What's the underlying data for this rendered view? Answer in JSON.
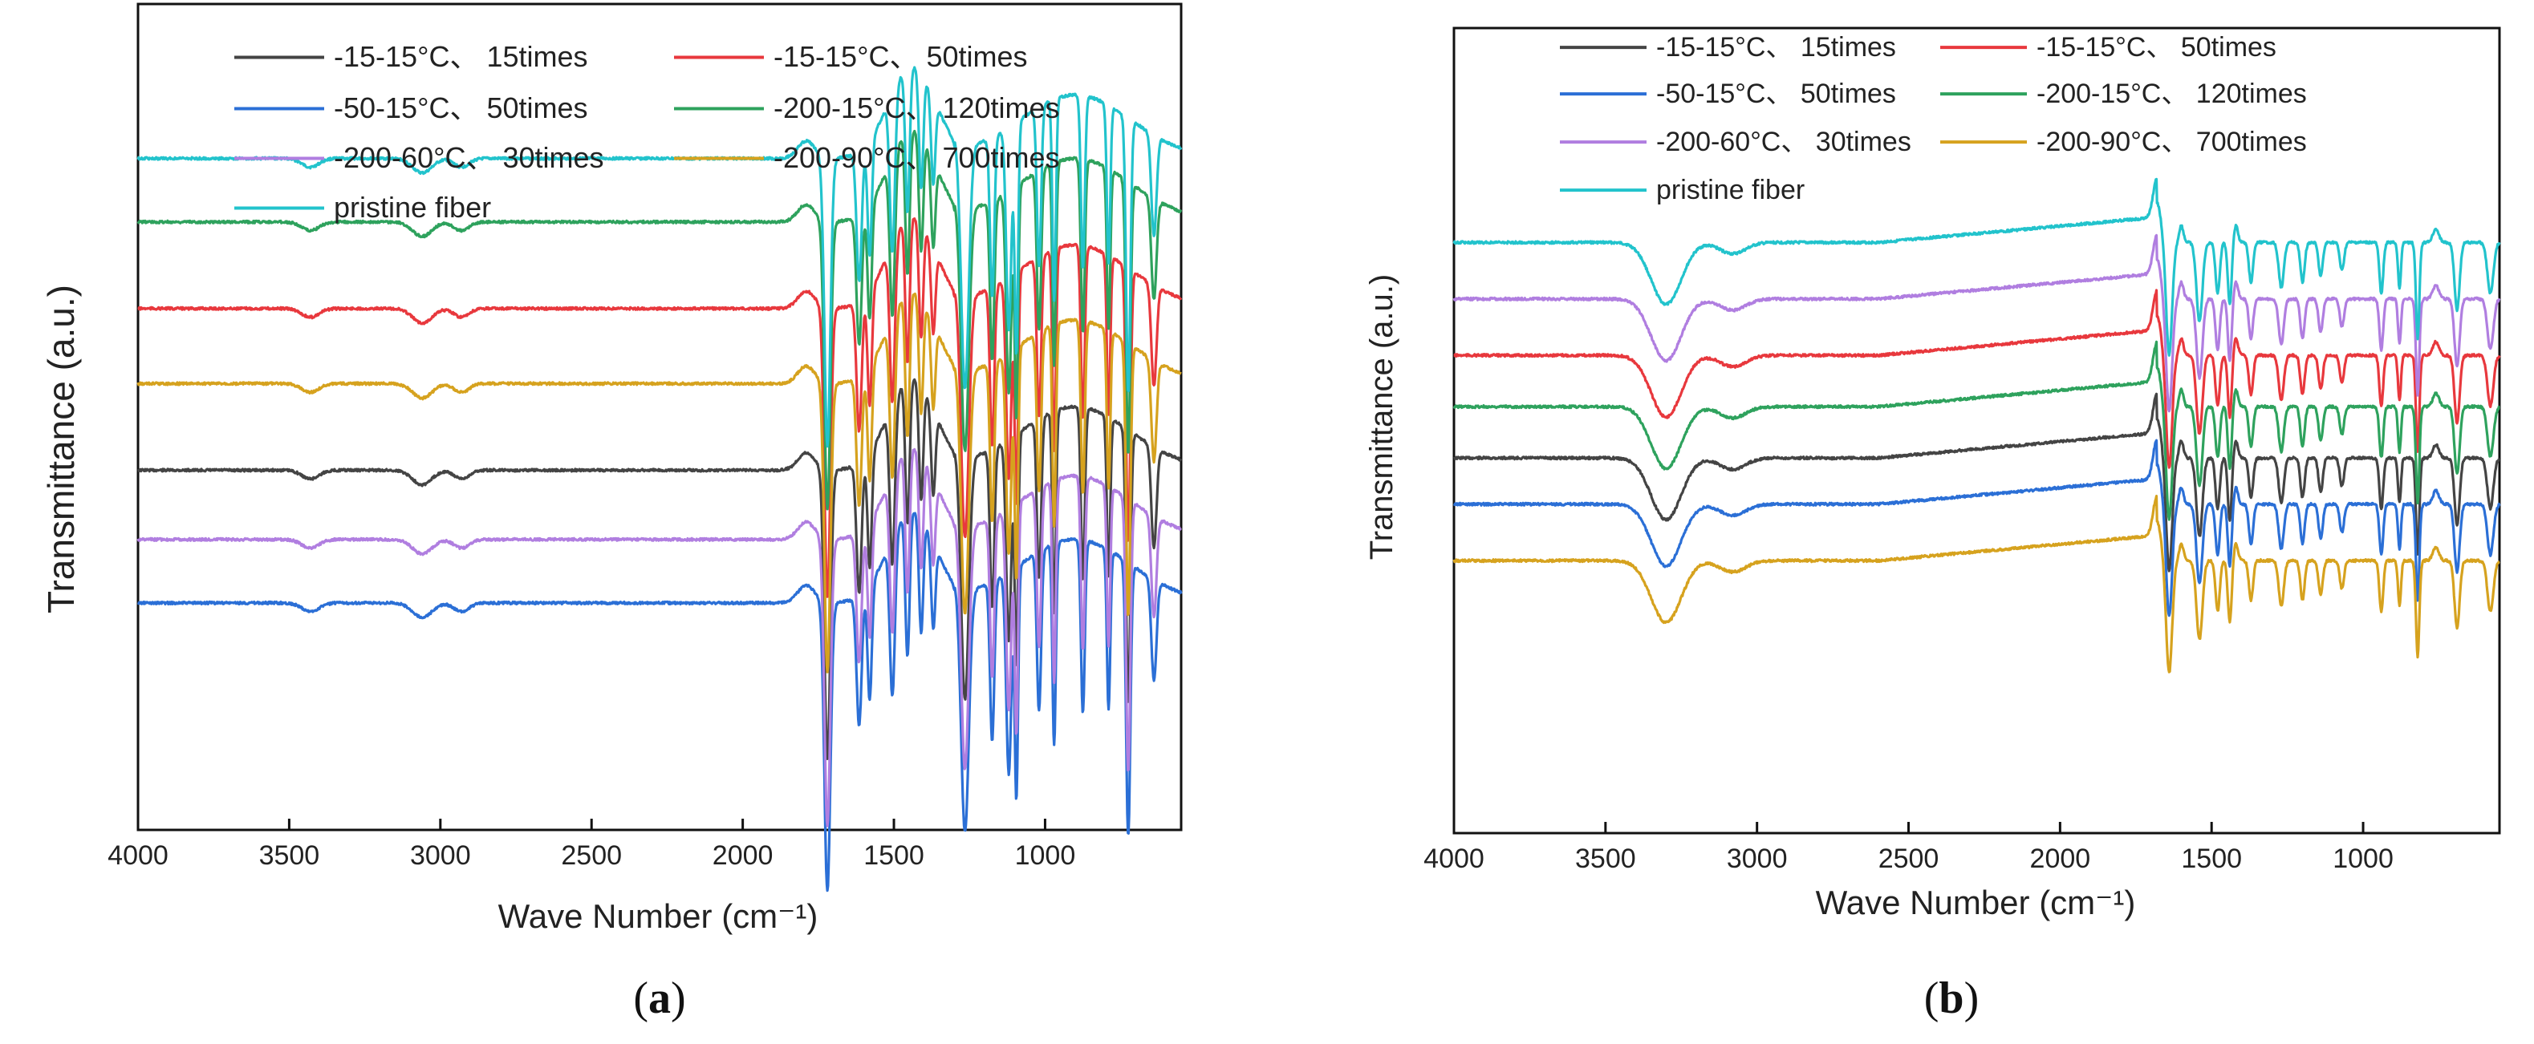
{
  "chart_data": [
    {
      "id": "a",
      "type": "line",
      "panel_label": "a",
      "xlabel": "Wave Number (cm⁻¹)",
      "ylabel": "Transmittance (a.u.)",
      "xlim": [
        4000,
        550
      ],
      "x_ticks": [
        "4000",
        "3500",
        "3000",
        "2500",
        "2000",
        "1500",
        "1000"
      ],
      "legend_position": "top-left, inside",
      "series": [
        {
          "name": "-15-15°C、 15times",
          "color": "#444444",
          "baseline": 0.38,
          "shape": "a_ester"
        },
        {
          "name": "-15-15°C、 50times",
          "color": "#e8383d",
          "baseline": 0.66,
          "shape": "a_ester"
        },
        {
          "name": "-50-15°C、 50times",
          "color": "#2b6fd6",
          "baseline": 0.15,
          "shape": "a_ester"
        },
        {
          "name": "-200-15°C、 120times",
          "color": "#2ea25d",
          "baseline": 0.81,
          "shape": "a_ester"
        },
        {
          "name": "-200-60°C、 30times",
          "color": "#b07ee0",
          "baseline": 0.26,
          "shape": "a_ester"
        },
        {
          "name": "-200-90°C、 700times",
          "color": "#d6a21e",
          "baseline": 0.53,
          "shape": "a_ester"
        },
        {
          "name": "pristine fiber",
          "color": "#22c3cc",
          "baseline": 0.92,
          "shape": "a_ester"
        }
      ]
    },
    {
      "id": "b",
      "type": "line",
      "panel_label": "b",
      "xlabel": "Wave Number (cm⁻¹)",
      "ylabel": "Transmittance (a.u.)",
      "xlim": [
        4000,
        550
      ],
      "x_ticks": [
        "4000",
        "3500",
        "3000",
        "2500",
        "2000",
        "1500",
        "1000"
      ],
      "legend_position": "top-left, inside",
      "series": [
        {
          "name": "-15-15°C、 15times",
          "color": "#444444",
          "baseline": 0.42,
          "shape": "b_amide"
        },
        {
          "name": "-15-15°C、 50times",
          "color": "#e8383d",
          "baseline": 0.62,
          "shape": "b_amide"
        },
        {
          "name": "-50-15°C、 50times",
          "color": "#2b6fd6",
          "baseline": 0.33,
          "shape": "b_amide"
        },
        {
          "name": "-200-15°C、 120times",
          "color": "#2ea25d",
          "baseline": 0.52,
          "shape": "b_amide"
        },
        {
          "name": "-200-60°C、 30times",
          "color": "#b07ee0",
          "baseline": 0.73,
          "shape": "b_amide"
        },
        {
          "name": "-200-90°C、 700times",
          "color": "#d6a21e",
          "baseline": 0.22,
          "shape": "b_amide"
        },
        {
          "name": "pristine fiber",
          "color": "#22c3cc",
          "baseline": 0.84,
          "shape": "b_amide"
        }
      ]
    }
  ]
}
